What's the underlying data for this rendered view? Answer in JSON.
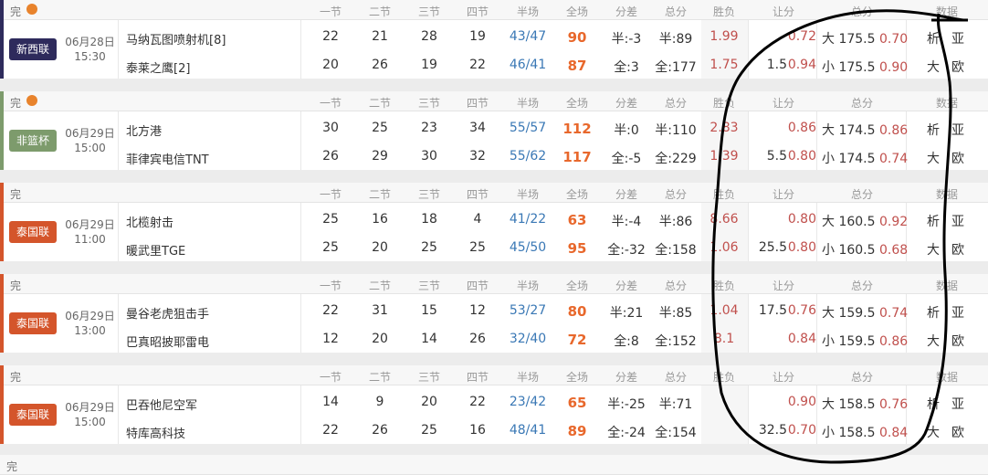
{
  "headers": {
    "status": "完",
    "q1": "一节",
    "q2": "二节",
    "q3": "三节",
    "q4": "四节",
    "half": "半场",
    "full": "全场",
    "diff": "分差",
    "total": "总分",
    "winlose": "胜负",
    "handicap": "让分",
    "overunder": "总分",
    "data": "数据"
  },
  "colors": {
    "新西联": "#2e2b5c",
    "非篮杯": "#7d9b6c",
    "泰国联": "#d4552b"
  },
  "matches": [
    {
      "league": "新西联",
      "date": "06月28日",
      "time": "15:30",
      "show_ball": true,
      "home": {
        "name": "马纳瓦图喷射机[8]",
        "q": [
          "22",
          "21",
          "28",
          "19"
        ],
        "half": [
          "43",
          "47"
        ],
        "full": "90",
        "diff": "半:-3",
        "total": "半:89",
        "wl": "1.99",
        "hc_line": "",
        "hc_odd": "0.72",
        "ou_label": "大",
        "ou_line": "175.5",
        "ou_odd": "0.70",
        "d1": "析",
        "d2": "亚"
      },
      "away": {
        "name": "泰莱之鹰[2]",
        "q": [
          "20",
          "26",
          "19",
          "22"
        ],
        "half": [
          "46",
          "41"
        ],
        "full": "87",
        "diff": "全:3",
        "total": "全:177",
        "wl": "1.75",
        "hc_line": "1.5",
        "hc_odd": "0.94",
        "ou_label": "小",
        "ou_line": "175.5",
        "ou_odd": "0.90",
        "d1": "大",
        "d2": "欧"
      }
    },
    {
      "league": "非篮杯",
      "date": "06月29日",
      "time": "15:00",
      "show_ball": true,
      "home": {
        "name": "北方港",
        "q": [
          "30",
          "25",
          "23",
          "34"
        ],
        "half": [
          "55",
          "57"
        ],
        "full": "112",
        "diff": "半:0",
        "total": "半:110",
        "wl": "2.83",
        "hc_line": "",
        "hc_odd": "0.86",
        "ou_label": "大",
        "ou_line": "174.5",
        "ou_odd": "0.86",
        "d1": "析",
        "d2": "亚"
      },
      "away": {
        "name": "菲律宾电信TNT",
        "q": [
          "26",
          "29",
          "30",
          "32"
        ],
        "half": [
          "55",
          "62"
        ],
        "full": "117",
        "diff": "全:-5",
        "total": "全:229",
        "wl": "1.39",
        "hc_line": "5.5",
        "hc_odd": "0.80",
        "ou_label": "小",
        "ou_line": "174.5",
        "ou_odd": "0.74",
        "d1": "大",
        "d2": "欧"
      }
    },
    {
      "league": "泰国联",
      "date": "06月29日",
      "time": "11:00",
      "show_ball": false,
      "home": {
        "name": "北榄射击",
        "q": [
          "25",
          "16",
          "18",
          "4"
        ],
        "half": [
          "41",
          "22"
        ],
        "full": "63",
        "diff": "半:-4",
        "total": "半:86",
        "wl": "8.66",
        "hc_line": "",
        "hc_odd": "0.80",
        "ou_label": "大",
        "ou_line": "160.5",
        "ou_odd": "0.92",
        "d1": "析",
        "d2": "亚"
      },
      "away": {
        "name": "暖武里TGE",
        "q": [
          "25",
          "20",
          "25",
          "25"
        ],
        "half": [
          "45",
          "50"
        ],
        "full": "95",
        "diff": "全:-32",
        "total": "全:158",
        "wl": "1.06",
        "hc_line": "25.5",
        "hc_odd": "0.80",
        "ou_label": "小",
        "ou_line": "160.5",
        "ou_odd": "0.68",
        "d1": "大",
        "d2": "欧"
      }
    },
    {
      "league": "泰国联",
      "date": "06月29日",
      "time": "13:00",
      "show_ball": false,
      "home": {
        "name": "曼谷老虎狙击手",
        "q": [
          "22",
          "31",
          "15",
          "12"
        ],
        "half": [
          "53",
          "27"
        ],
        "full": "80",
        "diff": "半:21",
        "total": "半:85",
        "wl": "1.04",
        "hc_line": "17.5",
        "hc_odd": "0.76",
        "ou_label": "大",
        "ou_line": "159.5",
        "ou_odd": "0.74",
        "d1": "析",
        "d2": "亚"
      },
      "away": {
        "name": "巴真昭披耶雷电",
        "q": [
          "12",
          "20",
          "14",
          "26"
        ],
        "half": [
          "32",
          "40"
        ],
        "full": "72",
        "diff": "全:8",
        "total": "全:152",
        "wl": "8.1",
        "hc_line": "",
        "hc_odd": "0.84",
        "ou_label": "小",
        "ou_line": "159.5",
        "ou_odd": "0.86",
        "d1": "大",
        "d2": "欧"
      }
    },
    {
      "league": "泰国联",
      "date": "06月29日",
      "time": "15:00",
      "show_ball": false,
      "home": {
        "name": "巴吞他尼空军",
        "q": [
          "14",
          "9",
          "20",
          "22"
        ],
        "half": [
          "23",
          "42"
        ],
        "full": "65",
        "diff": "半:-25",
        "total": "半:71",
        "wl": "",
        "hc_line": "",
        "hc_odd": "0.90",
        "ou_label": "大",
        "ou_line": "158.5",
        "ou_odd": "0.76",
        "d1": "析",
        "d2": "亚"
      },
      "away": {
        "name": "特库高科技",
        "q": [
          "22",
          "26",
          "25",
          "16"
        ],
        "half": [
          "48",
          "41"
        ],
        "full": "89",
        "diff": "全:-24",
        "total": "全:154",
        "wl": "",
        "hc_line": "32.5",
        "hc_odd": "0.70",
        "ou_label": "小",
        "ou_line": "158.5",
        "ou_odd": "0.84",
        "d1": "大",
        "d2": "欧"
      }
    }
  ],
  "next_header": {
    "status": "完"
  }
}
